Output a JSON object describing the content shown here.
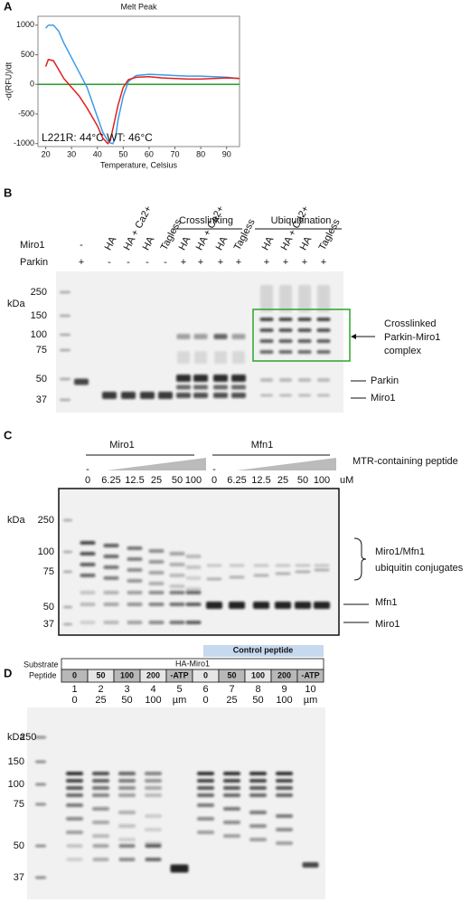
{
  "chart_data": {
    "type": "line",
    "panel": "A",
    "title": "Melt Peak",
    "x_label": "Temperature, Celsius",
    "y_label": "-d(RFU)/dt",
    "x": [
      20,
      21,
      23,
      25,
      27,
      30,
      33,
      36,
      38,
      40,
      42,
      44,
      45,
      46,
      47,
      48,
      50,
      52,
      55,
      60,
      65,
      70,
      75,
      80,
      85,
      90,
      95
    ],
    "series": [
      {
        "color": "#3c9be8",
        "values": [
          950,
          1000,
          1000,
          900,
          700,
          450,
          200,
          -50,
          -300,
          -550,
          -800,
          -950,
          -990,
          -1000,
          -900,
          -600,
          -200,
          50,
          150,
          170,
          160,
          150,
          140,
          140,
          130,
          120,
          100
        ]
      },
      {
        "color": "#e02020",
        "values": [
          300,
          420,
          400,
          250,
          100,
          -50,
          -200,
          -400,
          -550,
          -700,
          -900,
          -1000,
          -950,
          -750,
          -550,
          -350,
          -50,
          80,
          120,
          130,
          110,
          100,
          90,
          90,
          100,
          110,
          100
        ]
      }
    ],
    "xlim": [
      17,
      95
    ],
    "ylim": [
      -1050,
      1150
    ],
    "xticks": [
      20,
      30,
      40,
      50,
      60,
      70,
      80,
      90
    ],
    "yticks": [
      -1000,
      -500,
      0,
      500,
      1000
    ],
    "baseline_color": "#2a9a2a",
    "annotations": [
      {
        "text": "L221R: 44°C",
        "color": "#e02020"
      },
      {
        "text": "WT: 46°C",
        "color": "#3c9be8"
      }
    ]
  },
  "panel_b": {
    "label": "B",
    "headers": [
      "Crosslinking",
      "Ubiquitination"
    ],
    "row_labels": [
      "Miro1",
      "Parkin"
    ],
    "miro1": [
      "-",
      "HA",
      "HA + Ca2+",
      "HA",
      "Tagless",
      "HA",
      "HA + Ca2+",
      "HA",
      "Tagless",
      "HA",
      "HA + Ca2+",
      "HA",
      "Tagless"
    ],
    "parkin": [
      "+",
      "-",
      "-",
      "-",
      "-",
      "+",
      "+",
      "+",
      "+",
      "+",
      "+",
      "+",
      "+"
    ],
    "kda": "kDa",
    "markers": [
      "250",
      "150",
      "100",
      "75",
      "50",
      "37"
    ],
    "annotations": [
      "Crosslinked",
      "Parkin-Miro1",
      "complex",
      "Parkin",
      "Miro1"
    ]
  },
  "panel_c": {
    "label": "C",
    "groups": [
      "Miro1",
      "Mfn1"
    ],
    "ramp_label": "MTR-containing peptide",
    "dash": [
      "-",
      "-"
    ],
    "concentrations": [
      "0",
      "6.25",
      "12.5",
      "25",
      "50",
      "100",
      "0",
      "6.25",
      "12.5",
      "25",
      "50",
      "100"
    ],
    "unit": "uM",
    "kda": "kDa",
    "markers": [
      "250",
      "100",
      "75",
      "50",
      "37"
    ],
    "annotations": [
      "Miro1/Mfn1",
      "ubiquitin conjugates",
      "Mfn1",
      "Miro1"
    ]
  },
  "panel_d": {
    "label": "D",
    "row_labels": [
      "Substrate",
      "Peptide"
    ],
    "control": "Control peptide",
    "substrate": "HA-Miro1",
    "peptide": [
      "0",
      "50",
      "100",
      "200",
      "-ATP",
      "0",
      "50",
      "100",
      "200",
      "-ATP"
    ],
    "lanes": [
      "1",
      "2",
      "3",
      "4",
      "5",
      "6",
      "7",
      "8",
      "9",
      "10"
    ],
    "conc": [
      "0",
      "25",
      "50",
      "100",
      "µm",
      "0",
      "25",
      "50",
      "100",
      "µm"
    ],
    "kda": "kDa",
    "markers": [
      "250",
      "150",
      "100",
      "75",
      "50",
      "37"
    ]
  }
}
